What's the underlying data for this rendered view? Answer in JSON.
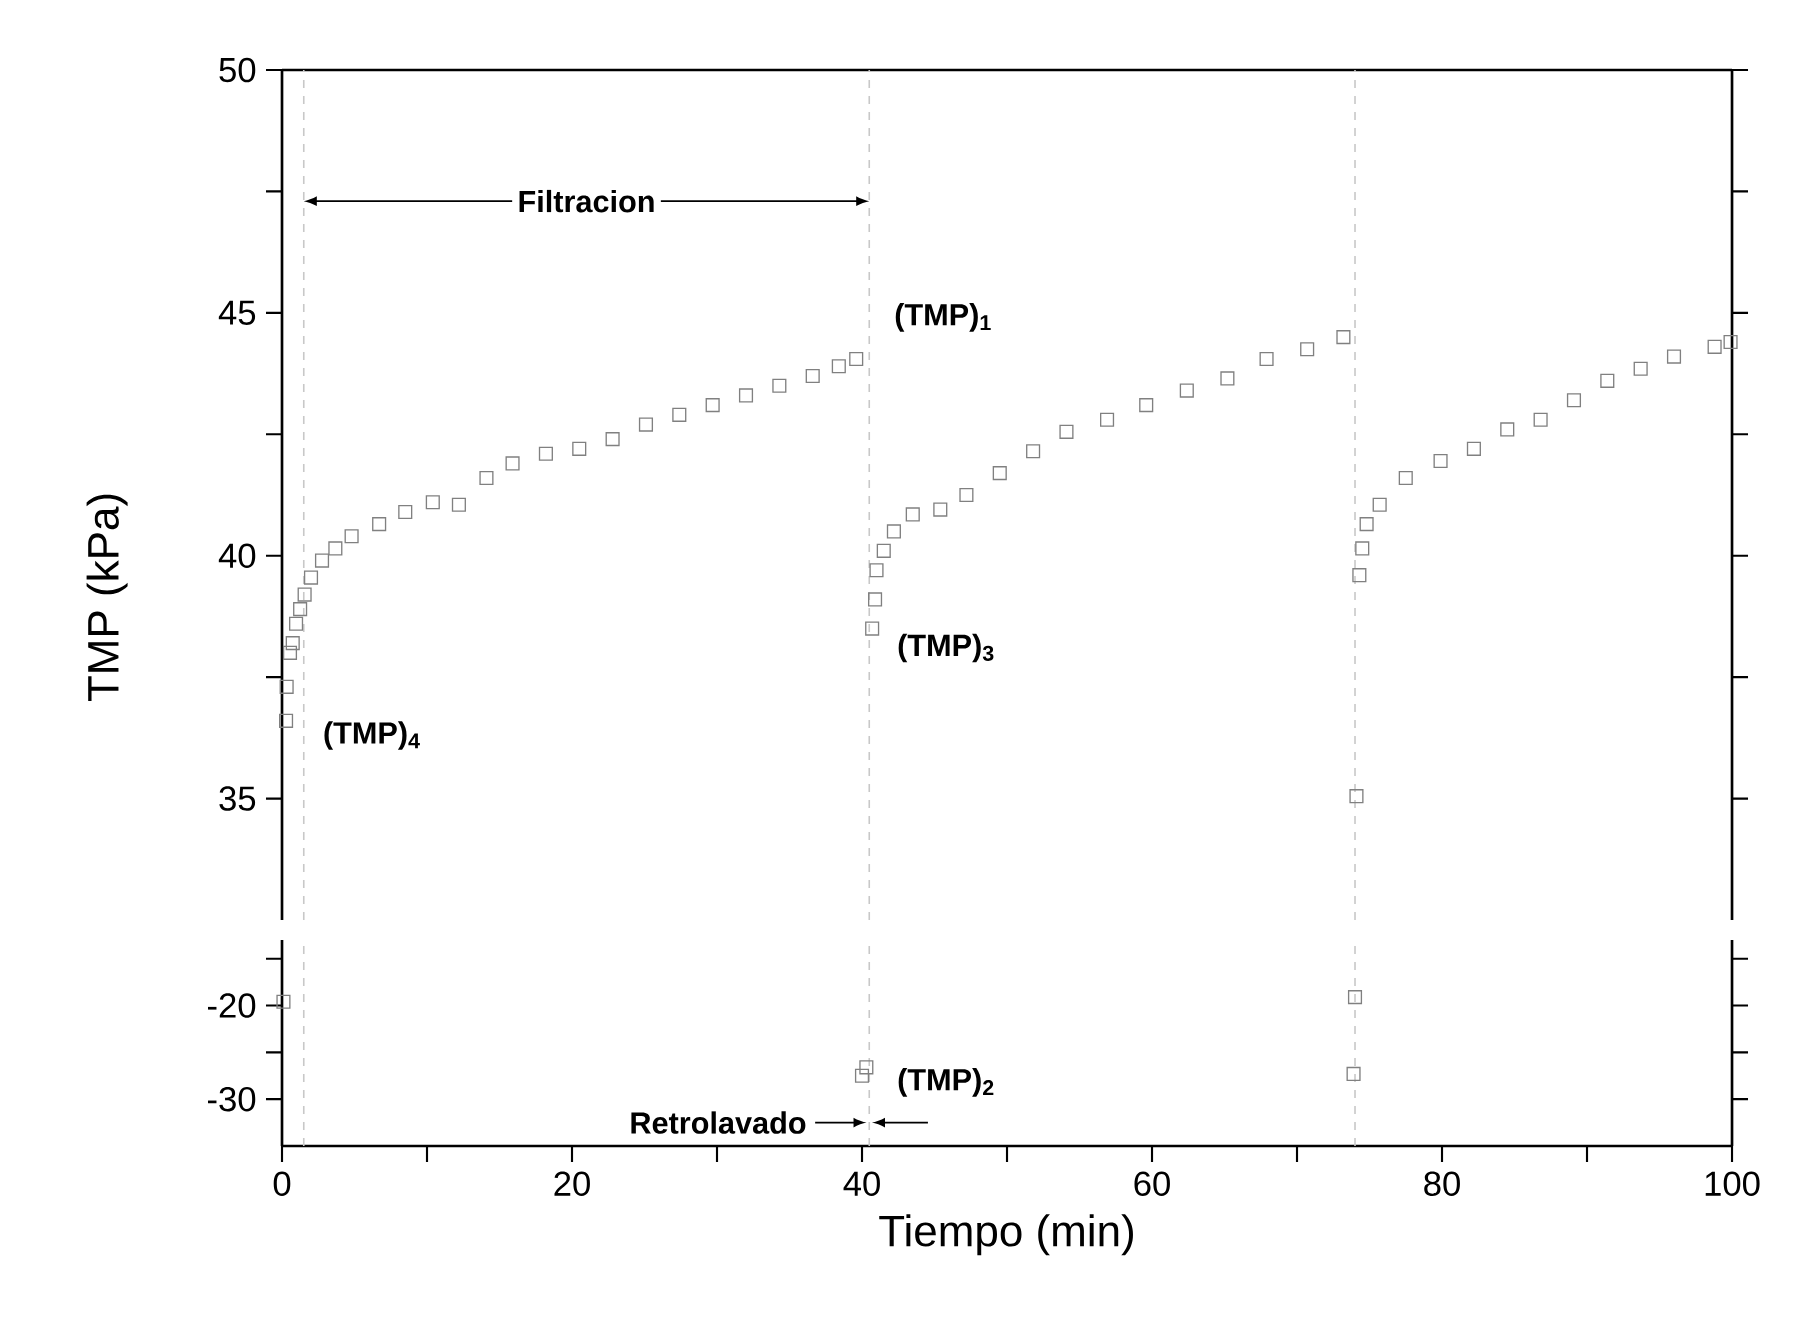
{
  "chart_data": [
    {
      "type": "scatter",
      "ylabel": "TMP (kPa)",
      "color": "#808080",
      "marker": "square",
      "x": [
        0.28,
        0.32,
        0.55,
        0.74,
        0.97,
        1.25,
        1.56,
        2.0,
        2.76,
        3.68,
        4.8,
        6.7,
        8.5,
        10.4,
        12.2,
        14.1,
        15.9,
        18.2,
        20.5,
        22.8,
        25.1,
        27.4,
        29.7,
        32.0,
        34.3,
        36.6,
        38.4,
        39.6,
        40.7,
        40.9,
        41.0,
        41.5,
        42.2,
        43.5,
        45.4,
        47.2,
        49.5,
        51.8,
        54.1,
        56.9,
        59.6,
        62.4,
        65.2,
        67.9,
        70.7,
        73.2,
        74.1,
        74.3,
        74.5,
        74.8,
        75.7,
        77.5,
        79.9,
        82.2,
        84.5,
        86.8,
        89.1,
        91.4,
        93.7,
        96.0,
        98.8,
        99.9
      ],
      "values": [
        36.6,
        37.3,
        38.0,
        38.2,
        38.6,
        38.9,
        39.2,
        39.55,
        39.9,
        40.15,
        40.4,
        40.65,
        40.9,
        41.1,
        41.05,
        41.6,
        41.9,
        42.1,
        42.2,
        42.4,
        42.7,
        42.9,
        43.1,
        43.3,
        43.5,
        43.7,
        43.9,
        44.05,
        38.5,
        39.1,
        39.7,
        40.1,
        40.5,
        40.85,
        40.95,
        41.25,
        41.7,
        42.15,
        42.55,
        42.8,
        43.1,
        43.4,
        43.65,
        44.05,
        44.25,
        44.5,
        35.05,
        39.6,
        40.15,
        40.65,
        41.05,
        41.6,
        41.95,
        42.2,
        42.6,
        42.8,
        43.2,
        43.6,
        43.85,
        44.1,
        44.3,
        44.4
      ],
      "xlim": [
        0,
        100
      ],
      "xticks": [
        0,
        20,
        40,
        60,
        80,
        100
      ],
      "ylim": [
        32.5,
        50
      ],
      "yticks": [
        35,
        {
          "value": 37.5,
          "label": null
        },
        40,
        {
          "value": 42.5,
          "label": null
        },
        45,
        {
          "value": 47.5,
          "label": null
        },
        50
      ],
      "tick_labels": "y",
      "ref_lines": [
        {
          "axis": "x",
          "value": 1.5,
          "color": "#c8c8c8",
          "line_style": "dashed"
        },
        {
          "axis": "x",
          "value": 40.5,
          "color": "#c8c8c8",
          "line_style": "dashed"
        },
        {
          "axis": "x",
          "value": 74,
          "color": "#c8c8c8",
          "line_style": "dashed"
        }
      ],
      "annotations": [
        {
          "text": "Filtracion",
          "x": 40.5,
          "y": 47.3
        },
        "(TMP)$_{1}$",
        "(TMP)$_{3}$",
        "(TMP)$_{4}$"
      ]
    },
    {
      "type": "scatter",
      "xlabel": "Tiempo (min)",
      "color": "#808080",
      "marker": "square",
      "x": [
        0.1,
        40.3,
        40.0,
        74.0,
        73.9
      ],
      "values": [
        -19.6,
        -26.6,
        -27.5,
        -19.1,
        -27.3
      ],
      "xlim": [
        0,
        100
      ],
      "xticks": [
        0,
        {
          "value": 10,
          "label": null
        },
        20,
        {
          "value": 30,
          "label": null
        },
        40,
        {
          "value": 50,
          "label": null
        },
        60,
        {
          "value": 70,
          "label": null
        },
        80,
        {
          "value": 90,
          "label": null
        },
        100
      ],
      "ylim": [
        -35,
        -13
      ],
      "yticks": [
        {
          "value": -15,
          "label": null
        },
        -20,
        {
          "value": -25,
          "label": null
        },
        -30
      ],
      "ref_lines": [
        {
          "axis": "x",
          "value": 1.5,
          "color": "#c8c8c8",
          "line_style": "dashed"
        },
        {
          "axis": "x",
          "value": 40.5,
          "color": "#c8c8c8",
          "line_style": "dashed"
        },
        {
          "axis": "x",
          "value": 74,
          "color": "#c8c8c8",
          "line_style": "dashed"
        }
      ],
      "annotations": [
        "(TMP)$_{2}$",
        {
          "text": "Retrolavado",
          "x": 40.5,
          "y": -32.5
        }
      ]
    }
  ]
}
